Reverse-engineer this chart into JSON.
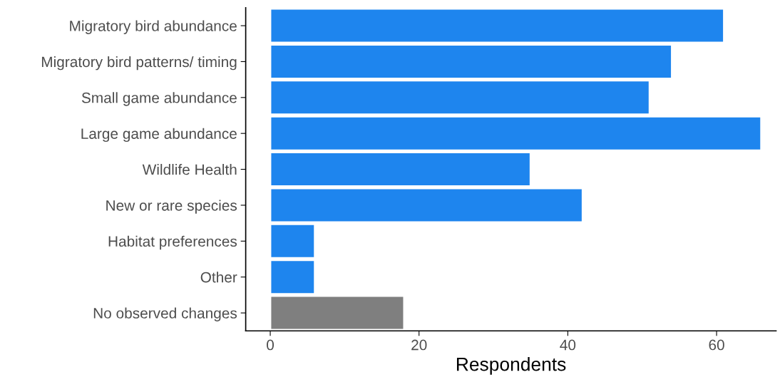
{
  "chart_data": {
    "type": "bar",
    "orientation": "horizontal",
    "xlabel": "Respondents",
    "categories": [
      "Migratory bird abundance",
      "Migratory bird patterns/ timing",
      "Small game abundance",
      "Large game abundance",
      "Wildlife Health",
      "New or rare species",
      "Habitat preferences",
      "Other",
      "No observed changes"
    ],
    "values": [
      61,
      54,
      51,
      66,
      35,
      42,
      6,
      6,
      18
    ],
    "colors": [
      "#1e85ee",
      "#1e85ee",
      "#1e85ee",
      "#1e85ee",
      "#1e85ee",
      "#1e85ee",
      "#1e85ee",
      "#1e85ee",
      "#7f7f7f"
    ],
    "xlim": [
      -3.3,
      68
    ],
    "xticks": [
      0,
      20,
      40,
      60
    ],
    "grid": false,
    "legend": false
  }
}
